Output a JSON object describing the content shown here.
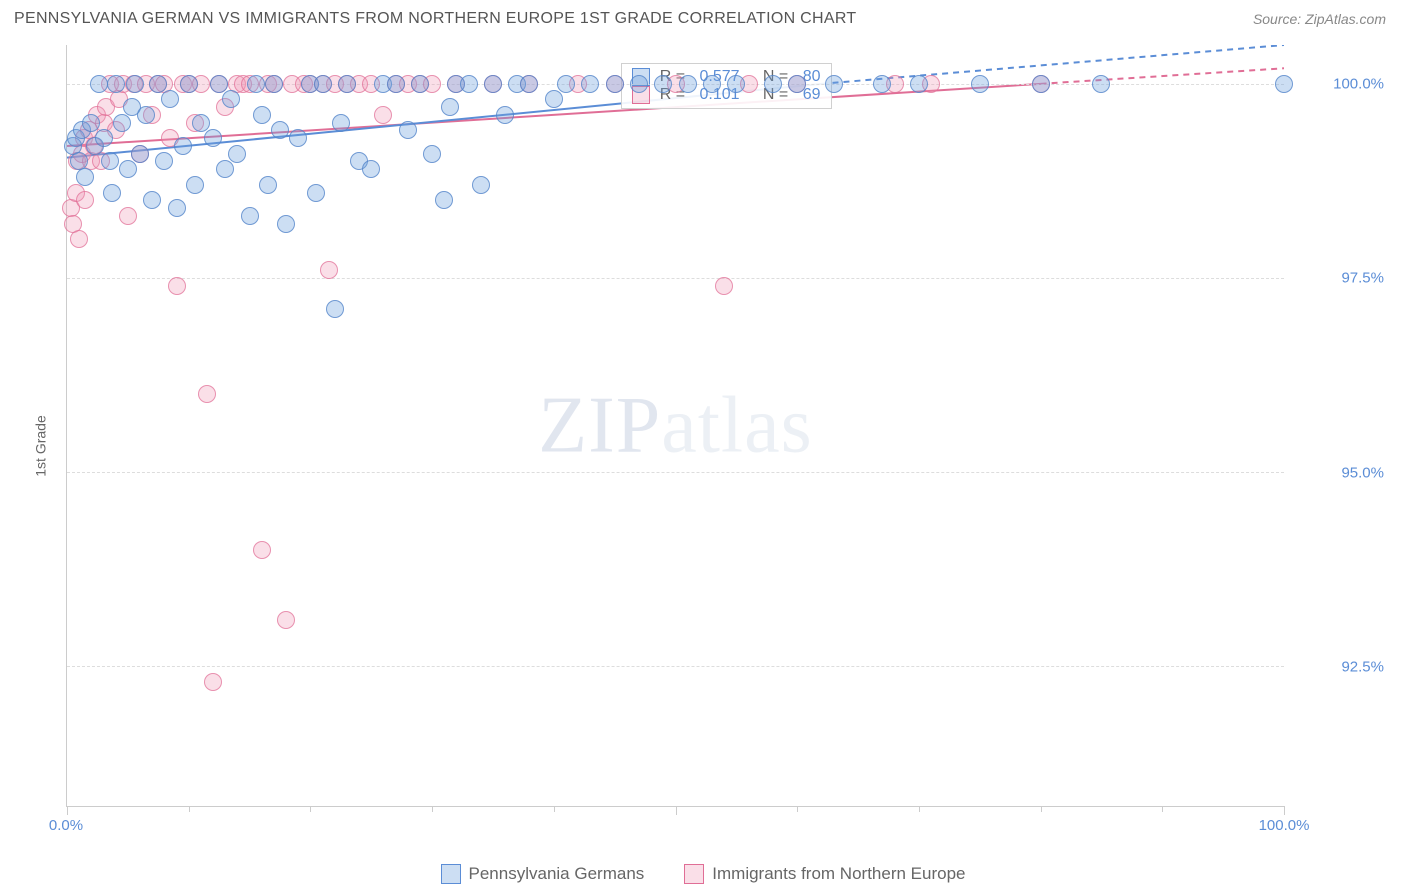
{
  "header": {
    "title": "PENNSYLVANIA GERMAN VS IMMIGRANTS FROM NORTHERN EUROPE 1ST GRADE CORRELATION CHART",
    "source": "Source: ZipAtlas.com"
  },
  "y_axis": {
    "label": "1st Grade"
  },
  "watermark": {
    "left": "ZIP",
    "right": "atlas"
  },
  "chart": {
    "type": "scatter",
    "background_color": "#ffffff",
    "grid_color": "#dddddd",
    "axis_color": "#cccccc",
    "tick_color": "#5b8dd6",
    "xlim": [
      0,
      100
    ],
    "ylim": [
      90.7,
      100.5
    ],
    "yticks": [
      {
        "v": 100.0,
        "label": "100.0%"
      },
      {
        "v": 97.5,
        "label": "97.5%"
      },
      {
        "v": 95.0,
        "label": "95.0%"
      },
      {
        "v": 92.5,
        "label": "92.5%"
      }
    ],
    "xticks_major": [
      0,
      50,
      100
    ],
    "xticks_minor": [
      10,
      20,
      30,
      40,
      60,
      70,
      80,
      90
    ],
    "xtick_labels": [
      {
        "v": 0,
        "label": "0.0%"
      },
      {
        "v": 100,
        "label": "100.0%"
      }
    ],
    "marker_size": 18,
    "series": {
      "blue": {
        "name": "Pennsylvania Germans",
        "fill": "rgba(110,160,220,0.35)",
        "stroke": "#5b8dd6",
        "points": [
          [
            0.5,
            99.2
          ],
          [
            0.7,
            99.3
          ],
          [
            1,
            99.0
          ],
          [
            1.2,
            99.4
          ],
          [
            1.5,
            98.8
          ],
          [
            2,
            99.5
          ],
          [
            2.3,
            99.2
          ],
          [
            2.6,
            100
          ],
          [
            3,
            99.3
          ],
          [
            3.5,
            99.0
          ],
          [
            3.7,
            98.6
          ],
          [
            4,
            100
          ],
          [
            4.5,
            99.5
          ],
          [
            5,
            98.9
          ],
          [
            5.3,
            99.7
          ],
          [
            5.6,
            100
          ],
          [
            6,
            99.1
          ],
          [
            6.5,
            99.6
          ],
          [
            7,
            98.5
          ],
          [
            7.5,
            100
          ],
          [
            8,
            99.0
          ],
          [
            8.5,
            99.8
          ],
          [
            9,
            98.4
          ],
          [
            9.5,
            99.2
          ],
          [
            10,
            100
          ],
          [
            10.5,
            98.7
          ],
          [
            11,
            99.5
          ],
          [
            12,
            99.3
          ],
          [
            12.5,
            100
          ],
          [
            13,
            98.9
          ],
          [
            13.5,
            99.8
          ],
          [
            14,
            99.1
          ],
          [
            15,
            98.3
          ],
          [
            15.5,
            100
          ],
          [
            16,
            99.6
          ],
          [
            16.5,
            98.7
          ],
          [
            17,
            100
          ],
          [
            17.5,
            99.4
          ],
          [
            18,
            98.2
          ],
          [
            19,
            99.3
          ],
          [
            20,
            100
          ],
          [
            20.5,
            98.6
          ],
          [
            21,
            100
          ],
          [
            22,
            97.1
          ],
          [
            22.5,
            99.5
          ],
          [
            23,
            100
          ],
          [
            24,
            99.0
          ],
          [
            25,
            98.9
          ],
          [
            26,
            100
          ],
          [
            27,
            100
          ],
          [
            28,
            99.4
          ],
          [
            29,
            100
          ],
          [
            30,
            99.1
          ],
          [
            31,
            98.5
          ],
          [
            31.5,
            99.7
          ],
          [
            32,
            100
          ],
          [
            33,
            100
          ],
          [
            34,
            98.7
          ],
          [
            35,
            100
          ],
          [
            36,
            99.6
          ],
          [
            37,
            100
          ],
          [
            38,
            100
          ],
          [
            40,
            99.8
          ],
          [
            41,
            100
          ],
          [
            43,
            100
          ],
          [
            45,
            100
          ],
          [
            47,
            100
          ],
          [
            49,
            100
          ],
          [
            51,
            100
          ],
          [
            53,
            100
          ],
          [
            55,
            100
          ],
          [
            58,
            100
          ],
          [
            60,
            100
          ],
          [
            63,
            100
          ],
          [
            67,
            100
          ],
          [
            70,
            100
          ],
          [
            75,
            100
          ],
          [
            80,
            100
          ],
          [
            85,
            100
          ],
          [
            100,
            100
          ]
        ],
        "trend": {
          "x1": 0,
          "y1": 99.05,
          "x2": 62,
          "y2": 100.0
        }
      },
      "pink": {
        "name": "Immigrants from Northern Europe",
        "fill": "rgba(240,150,180,0.30)",
        "stroke": "#e06e96",
        "points": [
          [
            0.3,
            98.4
          ],
          [
            0.5,
            98.2
          ],
          [
            0.7,
            98.6
          ],
          [
            0.8,
            99.0
          ],
          [
            1,
            98.0
          ],
          [
            1.2,
            99.1
          ],
          [
            1.4,
            99.3
          ],
          [
            1.5,
            98.5
          ],
          [
            1.8,
            99.4
          ],
          [
            2,
            99.0
          ],
          [
            2.2,
            99.2
          ],
          [
            2.5,
            99.6
          ],
          [
            2.8,
            99.0
          ],
          [
            3,
            99.5
          ],
          [
            3.2,
            99.7
          ],
          [
            3.5,
            100
          ],
          [
            4,
            99.4
          ],
          [
            4.3,
            99.8
          ],
          [
            4.6,
            100
          ],
          [
            5,
            98.3
          ],
          [
            5.5,
            100
          ],
          [
            6,
            99.1
          ],
          [
            6.5,
            100
          ],
          [
            7,
            99.6
          ],
          [
            7.5,
            100
          ],
          [
            8,
            100
          ],
          [
            8.5,
            99.3
          ],
          [
            9,
            97.4
          ],
          [
            9.5,
            100
          ],
          [
            10,
            100
          ],
          [
            10.5,
            99.5
          ],
          [
            11,
            100
          ],
          [
            11.5,
            96.0
          ],
          [
            12,
            92.3
          ],
          [
            12.5,
            100
          ],
          [
            13,
            99.7
          ],
          [
            14,
            100
          ],
          [
            14.5,
            100
          ],
          [
            15,
            100
          ],
          [
            16,
            94.0
          ],
          [
            16.5,
            100
          ],
          [
            17,
            100
          ],
          [
            18,
            93.1
          ],
          [
            18.5,
            100
          ],
          [
            19.5,
            100
          ],
          [
            20,
            100
          ],
          [
            21,
            100
          ],
          [
            21.5,
            97.6
          ],
          [
            22,
            100
          ],
          [
            23,
            100
          ],
          [
            24,
            100
          ],
          [
            25,
            100
          ],
          [
            26,
            99.6
          ],
          [
            27,
            100
          ],
          [
            28,
            100
          ],
          [
            29,
            100
          ],
          [
            30,
            100
          ],
          [
            32,
            100
          ],
          [
            35,
            100
          ],
          [
            38,
            100
          ],
          [
            42,
            100
          ],
          [
            45,
            100
          ],
          [
            50,
            100
          ],
          [
            54,
            97.4
          ],
          [
            56,
            100
          ],
          [
            60,
            100
          ],
          [
            68,
            100
          ],
          [
            71,
            100
          ],
          [
            80,
            100
          ]
        ],
        "trend": {
          "x1": 0,
          "y1": 99.2,
          "x2": 80,
          "y2": 100.0
        }
      }
    }
  },
  "stats": {
    "box_left_pct": 45.5,
    "box_top_pct": 2.3,
    "rows": [
      {
        "swatch_fill": "rgba(110,160,220,0.35)",
        "swatch_stroke": "#5b8dd6",
        "r_label": "R = ",
        "r": "0.577",
        "n_label": "   N = ",
        "n": "80"
      },
      {
        "swatch_fill": "rgba(240,150,180,0.30)",
        "swatch_stroke": "#e06e96",
        "r_label": "R = ",
        "r": "0.101",
        "n_label": "   N = ",
        "n": "69"
      }
    ]
  },
  "legend": {
    "items": [
      {
        "fill": "rgba(110,160,220,0.35)",
        "stroke": "#5b8dd6",
        "label": "Pennsylvania Germans"
      },
      {
        "fill": "rgba(240,150,180,0.30)",
        "stroke": "#e06e96",
        "label": "Immigrants from Northern Europe"
      }
    ]
  }
}
